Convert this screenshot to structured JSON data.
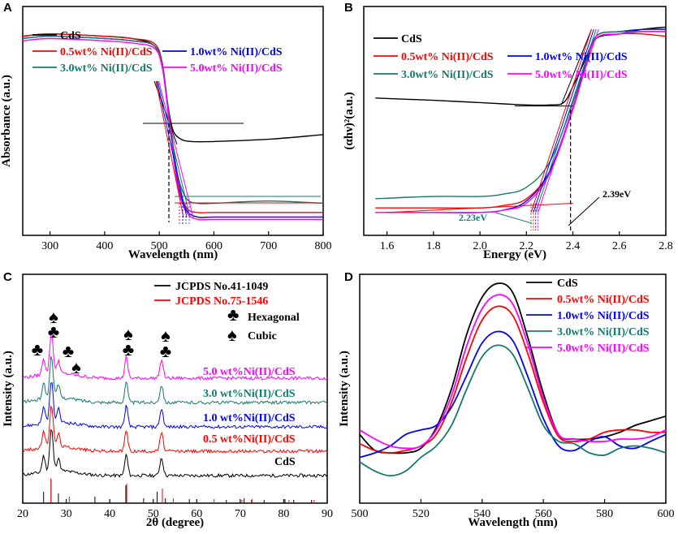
{
  "chart_data": [
    {
      "panel": "A",
      "type": "line",
      "xlabel": "Wavelength (nm)",
      "ylabel": "Absorbance (a.u.)",
      "xlim": [
        250,
        800
      ],
      "ylim": [
        0,
        1
      ],
      "xticks": [
        300,
        400,
        500,
        600,
        700,
        800
      ],
      "legend_position": "top-left",
      "series": [
        {
          "name": "CdS",
          "color": "#000000",
          "x": [
            250,
            300,
            400,
            450,
            490,
            505,
            515,
            525,
            540,
            560,
            600,
            700,
            800
          ],
          "y": [
            0.87,
            0.88,
            0.87,
            0.86,
            0.83,
            0.74,
            0.58,
            0.46,
            0.42,
            0.41,
            0.41,
            0.42,
            0.44
          ]
        },
        {
          "name": "0.5wt% Ni(II)/CdS",
          "color": "#ff0000",
          "x": [
            250,
            300,
            400,
            450,
            490,
            505,
            515,
            525,
            535,
            550,
            570,
            600,
            700,
            800
          ],
          "y": [
            0.87,
            0.88,
            0.87,
            0.86,
            0.84,
            0.76,
            0.58,
            0.38,
            0.22,
            0.12,
            0.1,
            0.1,
            0.1,
            0.1
          ]
        },
        {
          "name": "1.0wt% Ni(II)/CdS",
          "color": "#0000ff",
          "x": [
            250,
            300,
            400,
            450,
            490,
            505,
            515,
            525,
            535,
            550,
            570,
            600,
            700,
            800
          ],
          "y": [
            0.86,
            0.87,
            0.86,
            0.85,
            0.83,
            0.75,
            0.57,
            0.37,
            0.21,
            0.11,
            0.08,
            0.08,
            0.08,
            0.08
          ]
        },
        {
          "name": "3.0wt% Ni(II)/CdS",
          "color": "#147a6e",
          "x": [
            250,
            300,
            400,
            450,
            490,
            505,
            515,
            525,
            535,
            550,
            570,
            600,
            700,
            800
          ],
          "y": [
            0.86,
            0.87,
            0.86,
            0.85,
            0.83,
            0.75,
            0.58,
            0.4,
            0.25,
            0.16,
            0.14,
            0.14,
            0.15,
            0.14
          ]
        },
        {
          "name": "5.0wt% Ni(II)/CdS",
          "color": "#ff00ff",
          "x": [
            250,
            300,
            400,
            450,
            490,
            505,
            515,
            525,
            535,
            550,
            570,
            600,
            700,
            800
          ],
          "y": [
            0.85,
            0.86,
            0.85,
            0.84,
            0.82,
            0.74,
            0.56,
            0.36,
            0.2,
            0.1,
            0.07,
            0.07,
            0.07,
            0.07
          ]
        }
      ]
    },
    {
      "panel": "B",
      "type": "line",
      "xlabel": "Energy (eV)",
      "ylabel": "(αhν)²(a.u.)",
      "xlim": [
        1.5,
        2.8
      ],
      "ylim": [
        0,
        1
      ],
      "xticks": [
        1.6,
        1.8,
        2.0,
        2.2,
        2.4,
        2.6,
        2.8
      ],
      "legend_position": "top-left",
      "annotations": [
        {
          "text": "2.23eV",
          "x": 2.23
        },
        {
          "text": "2.39eV",
          "x": 2.39
        }
      ],
      "series": [
        {
          "name": "CdS",
          "color": "#000000",
          "x": [
            1.55,
            1.8,
            2.0,
            2.2,
            2.3,
            2.36,
            2.4,
            2.45,
            2.5,
            2.6,
            2.7,
            2.8
          ],
          "y": [
            0.6,
            0.59,
            0.58,
            0.57,
            0.57,
            0.58,
            0.65,
            0.76,
            0.86,
            0.88,
            0.9,
            0.91
          ]
        },
        {
          "name": "0.5wt% Ni(II)/CdS",
          "color": "#ff0000",
          "x": [
            1.55,
            1.8,
            2.0,
            2.1,
            2.2,
            2.3,
            2.4,
            2.45,
            2.5,
            2.6,
            2.7,
            2.8
          ],
          "y": [
            0.12,
            0.12,
            0.12,
            0.13,
            0.16,
            0.28,
            0.55,
            0.72,
            0.86,
            0.88,
            0.88,
            0.87
          ]
        },
        {
          "name": "1.0wt% Ni(II)/CdS",
          "color": "#0000ff",
          "x": [
            1.55,
            1.8,
            2.0,
            2.1,
            2.2,
            2.3,
            2.4,
            2.45,
            2.5,
            2.6,
            2.7,
            2.8
          ],
          "y": [
            0.1,
            0.1,
            0.1,
            0.11,
            0.15,
            0.28,
            0.56,
            0.73,
            0.87,
            0.89,
            0.9,
            0.9
          ]
        },
        {
          "name": "3.0wt% Ni(II)/CdS",
          "color": "#147a6e",
          "x": [
            1.55,
            1.8,
            2.0,
            2.1,
            2.2,
            2.3,
            2.4,
            2.45,
            2.5,
            2.6,
            2.7,
            2.8
          ],
          "y": [
            0.16,
            0.17,
            0.17,
            0.18,
            0.21,
            0.32,
            0.58,
            0.74,
            0.87,
            0.89,
            0.89,
            0.89
          ]
        },
        {
          "name": "5.0wt% Ni(II)/CdS",
          "color": "#ff00ff",
          "x": [
            1.55,
            1.8,
            2.0,
            2.1,
            2.2,
            2.3,
            2.4,
            2.45,
            2.5,
            2.6,
            2.7,
            2.8
          ],
          "y": [
            0.1,
            0.1,
            0.1,
            0.11,
            0.14,
            0.27,
            0.55,
            0.72,
            0.86,
            0.88,
            0.89,
            0.89
          ]
        }
      ]
    },
    {
      "panel": "C",
      "type": "line",
      "xlabel": "2θ (degree)",
      "ylabel": "Intensity (a.u.)",
      "xlim": [
        20,
        90
      ],
      "ylim": [
        0,
        1
      ],
      "xticks": [
        20,
        30,
        40,
        50,
        60,
        70,
        80,
        90
      ],
      "legend_position": "top-right",
      "references": [
        {
          "name": "JCPDS No.41-1049",
          "color": "#000000",
          "positions": [
            24.8,
            26.5,
            28.2,
            36.6,
            43.7,
            47.8,
            50.9,
            52.8,
            58.3,
            66.8,
            70.9,
            72.6,
            75.5,
            80.3,
            82.3,
            86.4
          ]
        },
        {
          "name": "JCPDS No.75-1546",
          "color": "#ff0000",
          "positions": [
            26.5,
            30.7,
            43.9,
            52.1,
            54.6,
            64.0,
            70.4,
            72.7,
            81.2,
            87.0
          ]
        }
      ],
      "markers": {
        "hexagonal": {
          "symbol": "♣",
          "label": "Hexagonal"
        },
        "cubic": {
          "symbol": "♠",
          "label": "Cubic"
        }
      },
      "series": [
        {
          "name": "CdS",
          "color": "#000000",
          "offset": 0.0
        },
        {
          "name": "0.5 wt%Ni(II)/CdS",
          "color": "#ff0000",
          "offset": 0.15
        },
        {
          "name": "1.0 wt%Ni(II)/CdS",
          "color": "#0000ff",
          "offset": 0.3
        },
        {
          "name": "3.0 wt%Ni(II)/CdS",
          "color": "#147a6e",
          "offset": 0.45
        },
        {
          "name": "5.0 wt%Ni(II)/CdS",
          "color": "#ff00ff",
          "offset": 0.6
        }
      ],
      "peaks": [
        {
          "x": 24.8,
          "h": 0.1,
          "w": 0.5
        },
        {
          "x": 26.6,
          "h": 0.26,
          "w": 0.55
        },
        {
          "x": 28.2,
          "h": 0.08,
          "w": 0.5
        },
        {
          "x": 43.8,
          "h": 0.13,
          "w": 0.5
        },
        {
          "x": 51.9,
          "h": 0.11,
          "w": 0.55
        }
      ]
    },
    {
      "panel": "D",
      "type": "line",
      "xlabel": "Wavelength (nm)",
      "ylabel": "Intensity (a.u.)",
      "xlim": [
        500,
        600
      ],
      "ylim": [
        0,
        1
      ],
      "xticks": [
        500,
        520,
        540,
        560,
        580,
        600
      ],
      "legend_position": "top-right",
      "series": [
        {
          "name": "CdS",
          "color": "#000000",
          "x": [
            500,
            505,
            510,
            515,
            520,
            525,
            530,
            535,
            540,
            545,
            550,
            555,
            560,
            565,
            570,
            575,
            580,
            585,
            590,
            595,
            600
          ],
          "y": [
            0.3,
            0.23,
            0.22,
            0.22,
            0.24,
            0.33,
            0.5,
            0.74,
            0.9,
            0.96,
            0.92,
            0.72,
            0.48,
            0.3,
            0.28,
            0.28,
            0.29,
            0.31,
            0.34,
            0.36,
            0.38
          ]
        },
        {
          "name": "0.5wt% Ni(II)/CdS",
          "color": "#ff0000",
          "x": [
            500,
            505,
            510,
            515,
            520,
            525,
            530,
            535,
            540,
            545,
            550,
            555,
            560,
            565,
            570,
            575,
            580,
            585,
            590,
            595,
            600
          ],
          "y": [
            0.26,
            0.23,
            0.22,
            0.23,
            0.25,
            0.3,
            0.44,
            0.64,
            0.8,
            0.86,
            0.82,
            0.65,
            0.44,
            0.29,
            0.27,
            0.28,
            0.31,
            0.32,
            0.32,
            0.31,
            0.31
          ]
        },
        {
          "name": "1.0wt% Ni(II)/CdS",
          "color": "#0000ff",
          "x": [
            500,
            505,
            510,
            515,
            520,
            525,
            530,
            535,
            540,
            545,
            550,
            555,
            560,
            565,
            570,
            575,
            580,
            585,
            590,
            595,
            600
          ],
          "y": [
            0.2,
            0.22,
            0.25,
            0.3,
            0.32,
            0.34,
            0.42,
            0.56,
            0.7,
            0.75,
            0.71,
            0.55,
            0.37,
            0.25,
            0.23,
            0.27,
            0.29,
            0.25,
            0.24,
            0.27,
            0.3
          ]
        },
        {
          "name": "3.0wt% Ni(II)/CdS",
          "color": "#147a6e",
          "x": [
            500,
            505,
            510,
            515,
            520,
            525,
            530,
            535,
            540,
            545,
            550,
            555,
            560,
            565,
            570,
            575,
            580,
            585,
            590,
            595,
            600
          ],
          "y": [
            0.18,
            0.14,
            0.12,
            0.14,
            0.2,
            0.25,
            0.34,
            0.5,
            0.64,
            0.69,
            0.65,
            0.5,
            0.34,
            0.27,
            0.26,
            0.22,
            0.21,
            0.24,
            0.25,
            0.24,
            0.22
          ]
        },
        {
          "name": "5.0wt% Ni(II)/CdS",
          "color": "#ff00ff",
          "x": [
            500,
            505,
            510,
            515,
            520,
            525,
            530,
            535,
            540,
            545,
            550,
            555,
            560,
            565,
            570,
            575,
            580,
            585,
            590,
            595,
            600
          ],
          "y": [
            0.32,
            0.28,
            0.25,
            0.24,
            0.25,
            0.32,
            0.47,
            0.69,
            0.85,
            0.91,
            0.87,
            0.69,
            0.46,
            0.3,
            0.28,
            0.27,
            0.27,
            0.28,
            0.28,
            0.29,
            0.32
          ]
        }
      ]
    }
  ]
}
